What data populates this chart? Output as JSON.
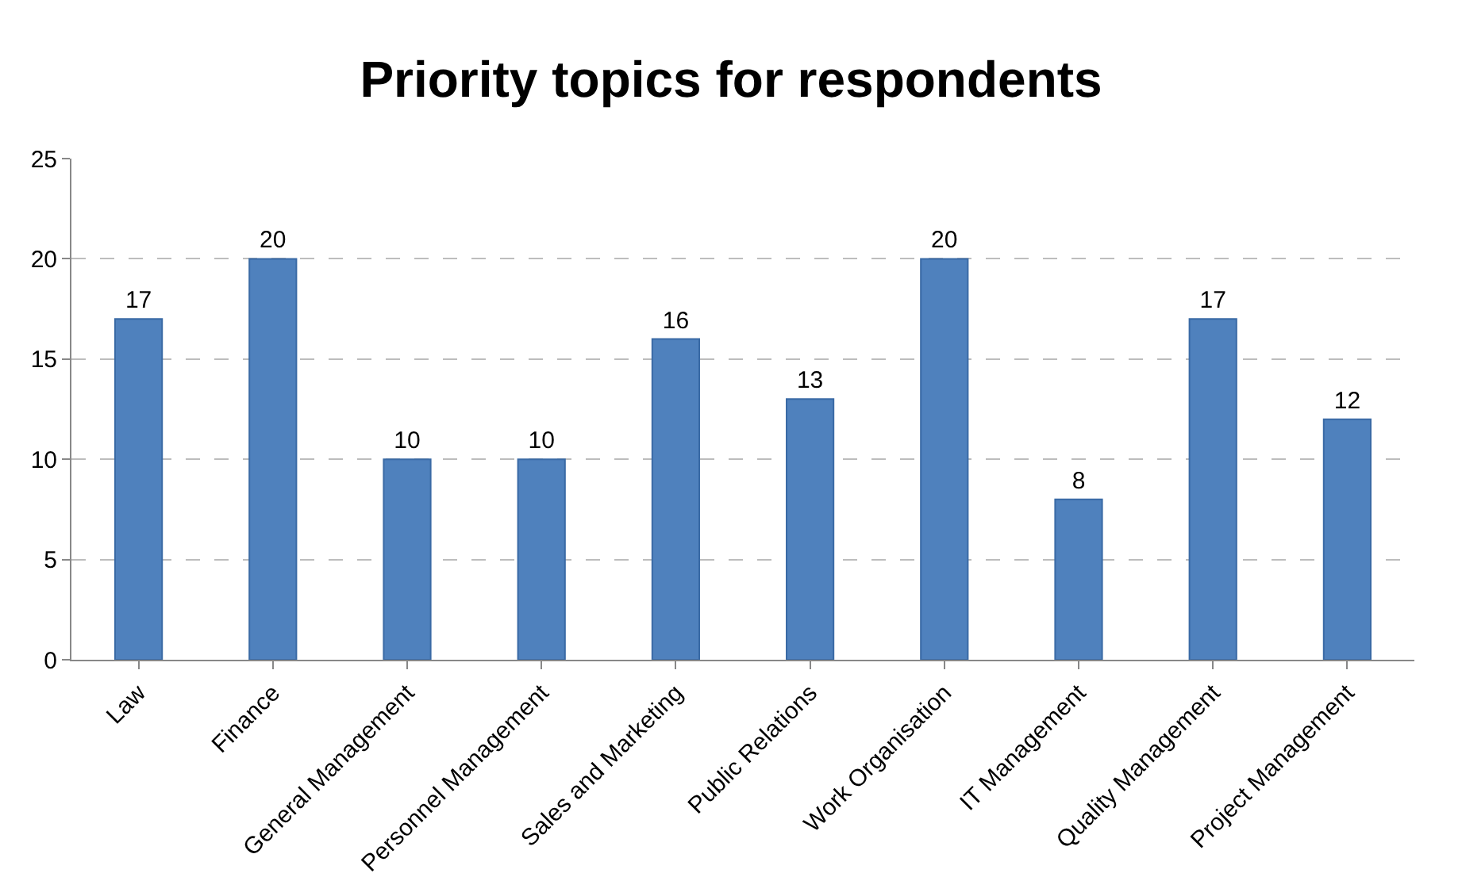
{
  "chart_data": {
    "type": "bar",
    "title": "Priority topics for respondents",
    "categories": [
      "Law",
      "Finance",
      "General Management",
      "Personnel Management",
      "Sales and Marketing",
      "Public Relations",
      "Work Organisation",
      "IT Management",
      "Quality Management",
      "Project Management"
    ],
    "values": [
      17,
      20,
      10,
      10,
      16,
      13,
      20,
      8,
      17,
      12
    ],
    "color": "#4f81bd",
    "ylim": [
      0,
      25
    ],
    "yticks": [
      0,
      5,
      10,
      15,
      20,
      25
    ],
    "grid": "y",
    "data_labels": true
  }
}
